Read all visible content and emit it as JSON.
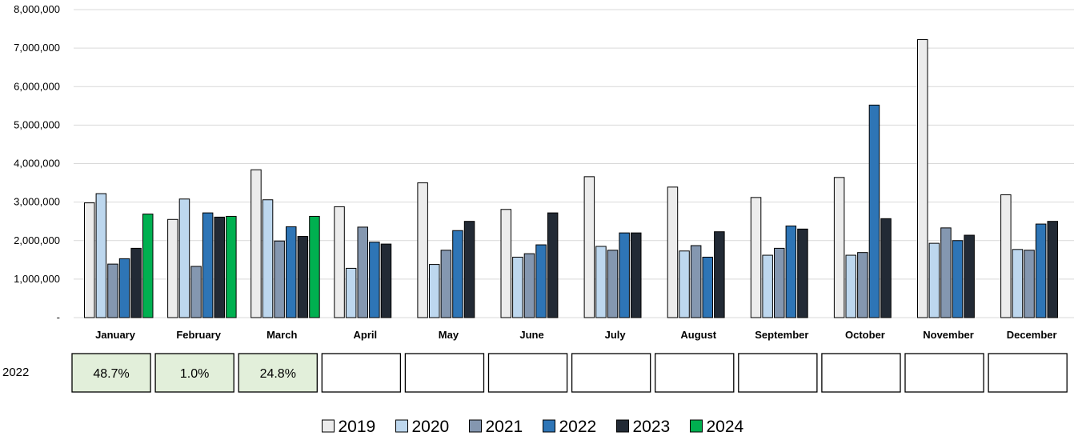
{
  "colors": {
    "2019": "#ececec",
    "2020": "#bdd7ee",
    "2021": "#8497b0",
    "2022": "#2e75b6",
    "2023": "#222a35",
    "2024": "#00b050",
    "grid": "#d9d9d9",
    "box_filled": "#e2efda",
    "bar_outline": "#000000"
  },
  "chart_data": {
    "type": "bar",
    "categories": [
      "January",
      "February",
      "March",
      "April",
      "May",
      "June",
      "July",
      "August",
      "September",
      "October",
      "November",
      "December"
    ],
    "ylim": [
      0,
      8000000
    ],
    "yticks": [
      0,
      1000000,
      2000000,
      3000000,
      4000000,
      5000000,
      6000000,
      7000000,
      8000000
    ],
    "ytick_labels": [
      "-",
      "1,000,000",
      "2,000,000",
      "3,000,000",
      "4,000,000",
      "5,000,000",
      "6,000,000",
      "7,000,000",
      "8,000,000"
    ],
    "grid": true,
    "legend_position": "bottom",
    "series": [
      {
        "name": "2019",
        "values": [
          2980000,
          2550000,
          3840000,
          2880000,
          3500000,
          2810000,
          3660000,
          3390000,
          3120000,
          3640000,
          7220000,
          3190000
        ]
      },
      {
        "name": "2020",
        "values": [
          3220000,
          3080000,
          3060000,
          1280000,
          1380000,
          1570000,
          1850000,
          1730000,
          1620000,
          1620000,
          1930000,
          1770000
        ]
      },
      {
        "name": "2021",
        "values": [
          1390000,
          1330000,
          1990000,
          2350000,
          1750000,
          1660000,
          1750000,
          1870000,
          1800000,
          1690000,
          2330000,
          1750000
        ]
      },
      {
        "name": "2022",
        "values": [
          1530000,
          2720000,
          2360000,
          1960000,
          2260000,
          1890000,
          2200000,
          1570000,
          2380000,
          5520000,
          2000000,
          2430000
        ]
      },
      {
        "name": "2023",
        "values": [
          1800000,
          2610000,
          2110000,
          1910000,
          2500000,
          2720000,
          2200000,
          2230000,
          2300000,
          2570000,
          2140000,
          2500000
        ]
      },
      {
        "name": "2024",
        "values": [
          2690000,
          2630000,
          2630000,
          null,
          null,
          null,
          null,
          null,
          null,
          null,
          null,
          null
        ]
      }
    ]
  },
  "comparison_table": {
    "row_label": "2022",
    "cells": [
      "48.7%",
      "1.0%",
      "24.8%",
      "",
      "",
      "",
      "",
      "",
      "",
      "",
      "",
      ""
    ]
  }
}
